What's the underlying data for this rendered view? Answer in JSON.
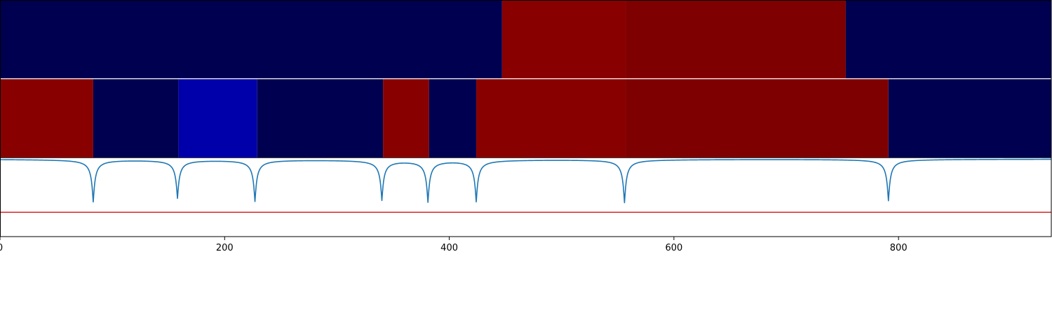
{
  "chart_data": {
    "type": "heatmap",
    "title": "",
    "xlabel": "",
    "ylabel": "",
    "xlim": [
      0,
      936
    ],
    "xticks": [
      0,
      200,
      400,
      600,
      800
    ],
    "xtick_labels": [
      "0",
      "200",
      "400",
      "600",
      "800"
    ],
    "colors": {
      "navy": "#000050",
      "blue": "#0000aa",
      "red": "#880000",
      "dark_red": "#7f0000",
      "line": "#1f77b4",
      "threshold": "#d62728"
    },
    "rows": [
      {
        "name": "",
        "segments": [
          {
            "start": 0,
            "end": 447,
            "color": "navy"
          },
          {
            "start": 447,
            "end": 557,
            "color": "red"
          },
          {
            "start": 557,
            "end": 753,
            "color": "dark_red"
          },
          {
            "start": 753,
            "end": 936,
            "color": "navy"
          }
        ]
      },
      {
        "name": "",
        "segments": [
          {
            "start": 0,
            "end": 83,
            "color": "red"
          },
          {
            "start": 83,
            "end": 159,
            "color": "navy"
          },
          {
            "start": 159,
            "end": 229,
            "color": "blue"
          },
          {
            "start": 229,
            "end": 341,
            "color": "navy"
          },
          {
            "start": 341,
            "end": 382,
            "color": "red"
          },
          {
            "start": 382,
            "end": 424,
            "color": "navy"
          },
          {
            "start": 424,
            "end": 557,
            "color": "red"
          },
          {
            "start": 557,
            "end": 791,
            "color": "dark_red"
          },
          {
            "start": 791,
            "end": 936,
            "color": "navy"
          }
        ]
      }
    ],
    "signal": {
      "ylim": [
        0,
        1
      ],
      "baseline": 0.99,
      "threshold": 0.31,
      "dips": [
        {
          "x": 83,
          "depth": 0.54
        },
        {
          "x": 158,
          "depth": 0.49
        },
        {
          "x": 227,
          "depth": 0.53
        },
        {
          "x": 340,
          "depth": 0.51
        },
        {
          "x": 381,
          "depth": 0.53
        },
        {
          "x": 424,
          "depth": 0.53
        },
        {
          "x": 556,
          "depth": 0.55
        },
        {
          "x": 791,
          "depth": 0.53
        }
      ]
    }
  }
}
